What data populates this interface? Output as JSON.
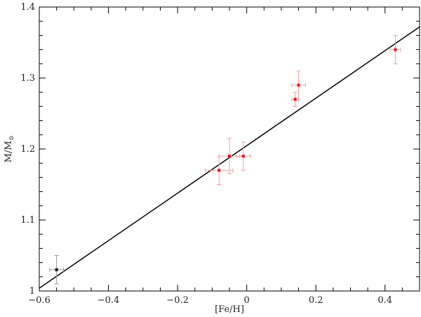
{
  "chart_data": {
    "type": "scatter",
    "title": "",
    "xlabel": "[Fe/H]",
    "ylabel": {
      "base": "M/M",
      "subscript": "⊙"
    },
    "xlim": [
      -0.6,
      0.5
    ],
    "ylim": [
      1.0,
      1.4
    ],
    "x_ticks": [
      -0.6,
      -0.4,
      -0.2,
      0,
      0.2,
      0.4
    ],
    "x_tick_labels": [
      "−0.6",
      "−0.4",
      "−0.2",
      "0",
      "0.2",
      "0.4"
    ],
    "y_ticks": [
      1.0,
      1.1,
      1.2,
      1.3,
      1.4
    ],
    "y_tick_labels": [
      "1",
      "1.1",
      "1.2",
      "1.3",
      "1.4"
    ],
    "grid": false,
    "series": [
      {
        "color": "#ff0000",
        "errorbar_color": "#f4a0a0",
        "points": [
          {
            "x": -0.08,
            "y": 1.17,
            "xerr": 0.04,
            "yerr": 0.02
          },
          {
            "x": -0.05,
            "y": 1.19,
            "xerr": 0.03,
            "yerr": 0.025
          },
          {
            "x": -0.01,
            "y": 1.19,
            "xerr": 0.02,
            "yerr": 0.02
          },
          {
            "x": 0.14,
            "y": 1.27,
            "xerr": 0.01,
            "yerr": 0.01
          },
          {
            "x": 0.15,
            "y": 1.29,
            "xerr": 0.02,
            "yerr": 0.02
          },
          {
            "x": 0.43,
            "y": 1.34,
            "xerr": 0.015,
            "yerr": 0.02
          }
        ]
      },
      {
        "color": "#000000",
        "errorbar_color": "#999999",
        "points": [
          {
            "x": -0.55,
            "y": 1.03,
            "xerr": 0.02,
            "yerr": 0.02
          }
        ]
      }
    ],
    "fit_line": {
      "x": [
        -0.6,
        0.5
      ],
      "y": [
        1.004,
        1.372
      ],
      "color": "#000000"
    }
  }
}
